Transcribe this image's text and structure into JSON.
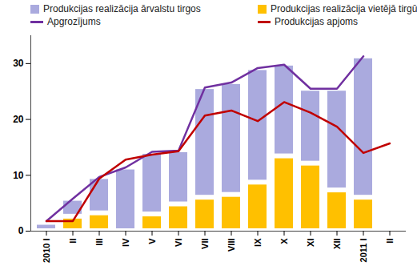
{
  "chart_data": {
    "type": "bar",
    "stacked": true,
    "grid": false,
    "legend": "top",
    "categories": [
      "2010 I",
      "II",
      "III",
      "IV",
      "V",
      "VI",
      "VII",
      "VIII",
      "IX",
      "X",
      "XI",
      "XII",
      "2011 I",
      "II"
    ],
    "ylim": [
      0,
      35
    ],
    "yticks": [
      0,
      10,
      20,
      30
    ],
    "series": [
      {
        "name": "Produkcijas realizācija ārvalstu tirgos",
        "type": "bar",
        "color": "#aaaade",
        "values": [
          1.5,
          3.2,
          6.5,
          11.4,
          11.2,
          9.7,
          19.8,
          20.2,
          20.5,
          16.6,
          13.4,
          18.2,
          25.3,
          null
        ]
      },
      {
        "name": "Produkcijas realizācija vietējā tirgū",
        "type": "bar",
        "color": "#ffc000",
        "values": [
          0,
          2.6,
          3.2,
          0,
          3.0,
          4.8,
          6.0,
          6.5,
          8.7,
          13.4,
          12.1,
          7.3,
          6.0,
          null
        ]
      },
      {
        "name": "Apgrozījums",
        "type": "line",
        "color": "#7030a0",
        "values": [
          1.8,
          5.8,
          9.7,
          11.4,
          14.2,
          14.4,
          25.7,
          26.6,
          29.2,
          29.8,
          25.5,
          25.5,
          31.3,
          null
        ]
      },
      {
        "name": "Produkcijas apjoms",
        "type": "line",
        "color": "#c00000",
        "values": [
          1.8,
          1.8,
          9.4,
          12.8,
          13.7,
          14.3,
          20.7,
          21.6,
          19.7,
          23.1,
          21.2,
          18.7,
          14.0,
          15.7
        ]
      }
    ]
  }
}
